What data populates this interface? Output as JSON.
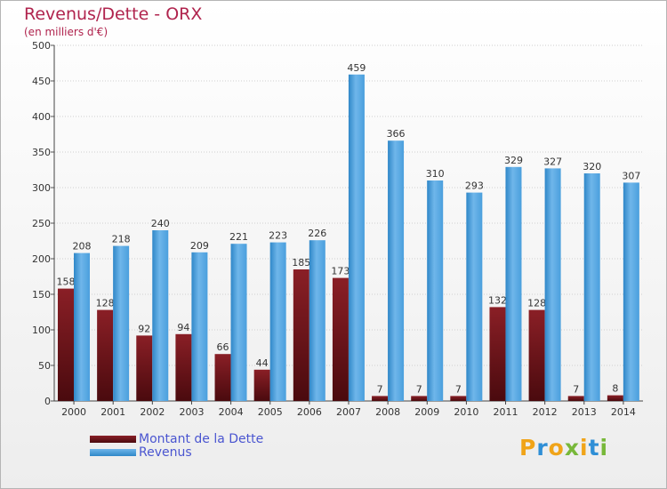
{
  "title": "Revenus/Dette - ORX",
  "subtitle": "(en milliers d'€)",
  "legend": {
    "dette": "Montant de la Dette",
    "revenus": "Revenus"
  },
  "logo": "Proxiti",
  "colors": {
    "title": "#b0244e",
    "dette_top": "#8a1f26",
    "dette_bottom": "#4a0a0e",
    "revenus_top": "#6fb6ea",
    "revenus_bottom": "#2f87c8",
    "legend_text": "#4a55d0"
  },
  "chart_data": {
    "type": "bar",
    "title": "Revenus/Dette - ORX",
    "ylabel": "(en milliers d'€)",
    "xlabel": "",
    "ylim": [
      0,
      500
    ],
    "yticks": [
      0,
      50,
      100,
      150,
      200,
      250,
      300,
      350,
      400,
      450,
      500
    ],
    "grid": true,
    "legend_position": "bottom-left",
    "categories": [
      "2000",
      "2001",
      "2002",
      "2003",
      "2004",
      "2005",
      "2006",
      "2007",
      "2008",
      "2009",
      "2010",
      "2011",
      "2012",
      "2013",
      "2014"
    ],
    "series": [
      {
        "name": "Montant de la Dette",
        "values": [
          158,
          128,
          92,
          94,
          66,
          44,
          185,
          173,
          7,
          7,
          7,
          132,
          128,
          7,
          8
        ]
      },
      {
        "name": "Revenus",
        "values": [
          208,
          218,
          240,
          209,
          221,
          223,
          226,
          459,
          366,
          310,
          293,
          329,
          327,
          320,
          307
        ]
      }
    ]
  }
}
